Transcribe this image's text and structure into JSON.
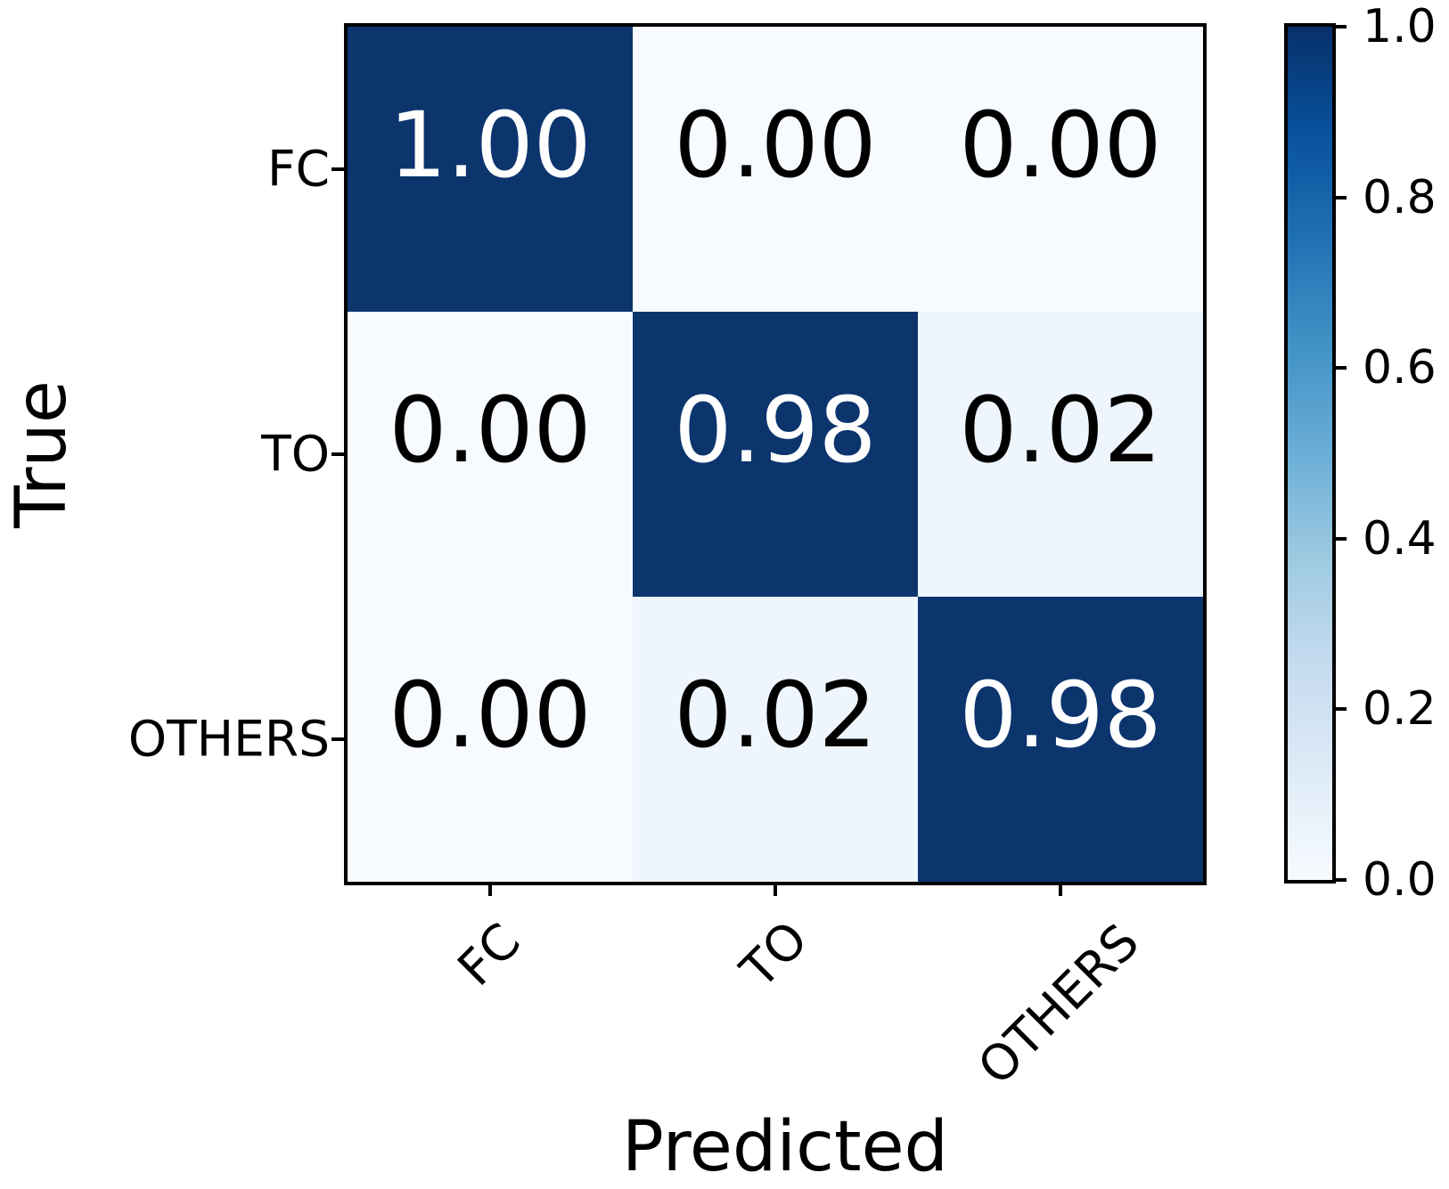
{
  "chart_data": {
    "type": "heatmap",
    "subtype": "confusion-matrix",
    "xlabel": "Predicted",
    "ylabel": "True",
    "row_labels": [
      "FC",
      "TO",
      "OTHERS"
    ],
    "col_labels": [
      "FC",
      "TO",
      "OTHERS"
    ],
    "matrix": [
      [
        1.0,
        0.0,
        0.0
      ],
      [
        0.0,
        0.98,
        0.02
      ],
      [
        0.0,
        0.02,
        0.98
      ]
    ],
    "cell_value_labels": [
      [
        "1.00",
        "0.00",
        "0.00"
      ],
      [
        "0.00",
        "0.98",
        "0.02"
      ],
      [
        "0.00",
        "0.02",
        "0.98"
      ]
    ],
    "value_decimals": 2,
    "colormap": "Blues",
    "grid": false,
    "legend_position": "right-colorbar",
    "colorbar": {
      "min": 0.0,
      "max": 1.0,
      "tick_values": [
        1.0,
        0.8,
        0.6,
        0.4,
        0.2,
        0.0
      ],
      "tick_labels": [
        "1.0",
        "0.8",
        "0.6",
        "0.4",
        "0.2",
        "0.0"
      ]
    }
  },
  "colors": {
    "cell_high": "#0c356e",
    "cell_low": "#f7fbff",
    "cell_low_tint": "#eef5fc",
    "text_on_dark": "#ffffff",
    "text_on_light": "#000000",
    "axis": "#000000",
    "background": "#ffffff",
    "blues_gradient_stops": [
      "#f7fbff",
      "#deebf7",
      "#c6dbef",
      "#9ecae1",
      "#6baed6",
      "#4292c6",
      "#2171b5",
      "#08519c",
      "#08306b"
    ]
  }
}
